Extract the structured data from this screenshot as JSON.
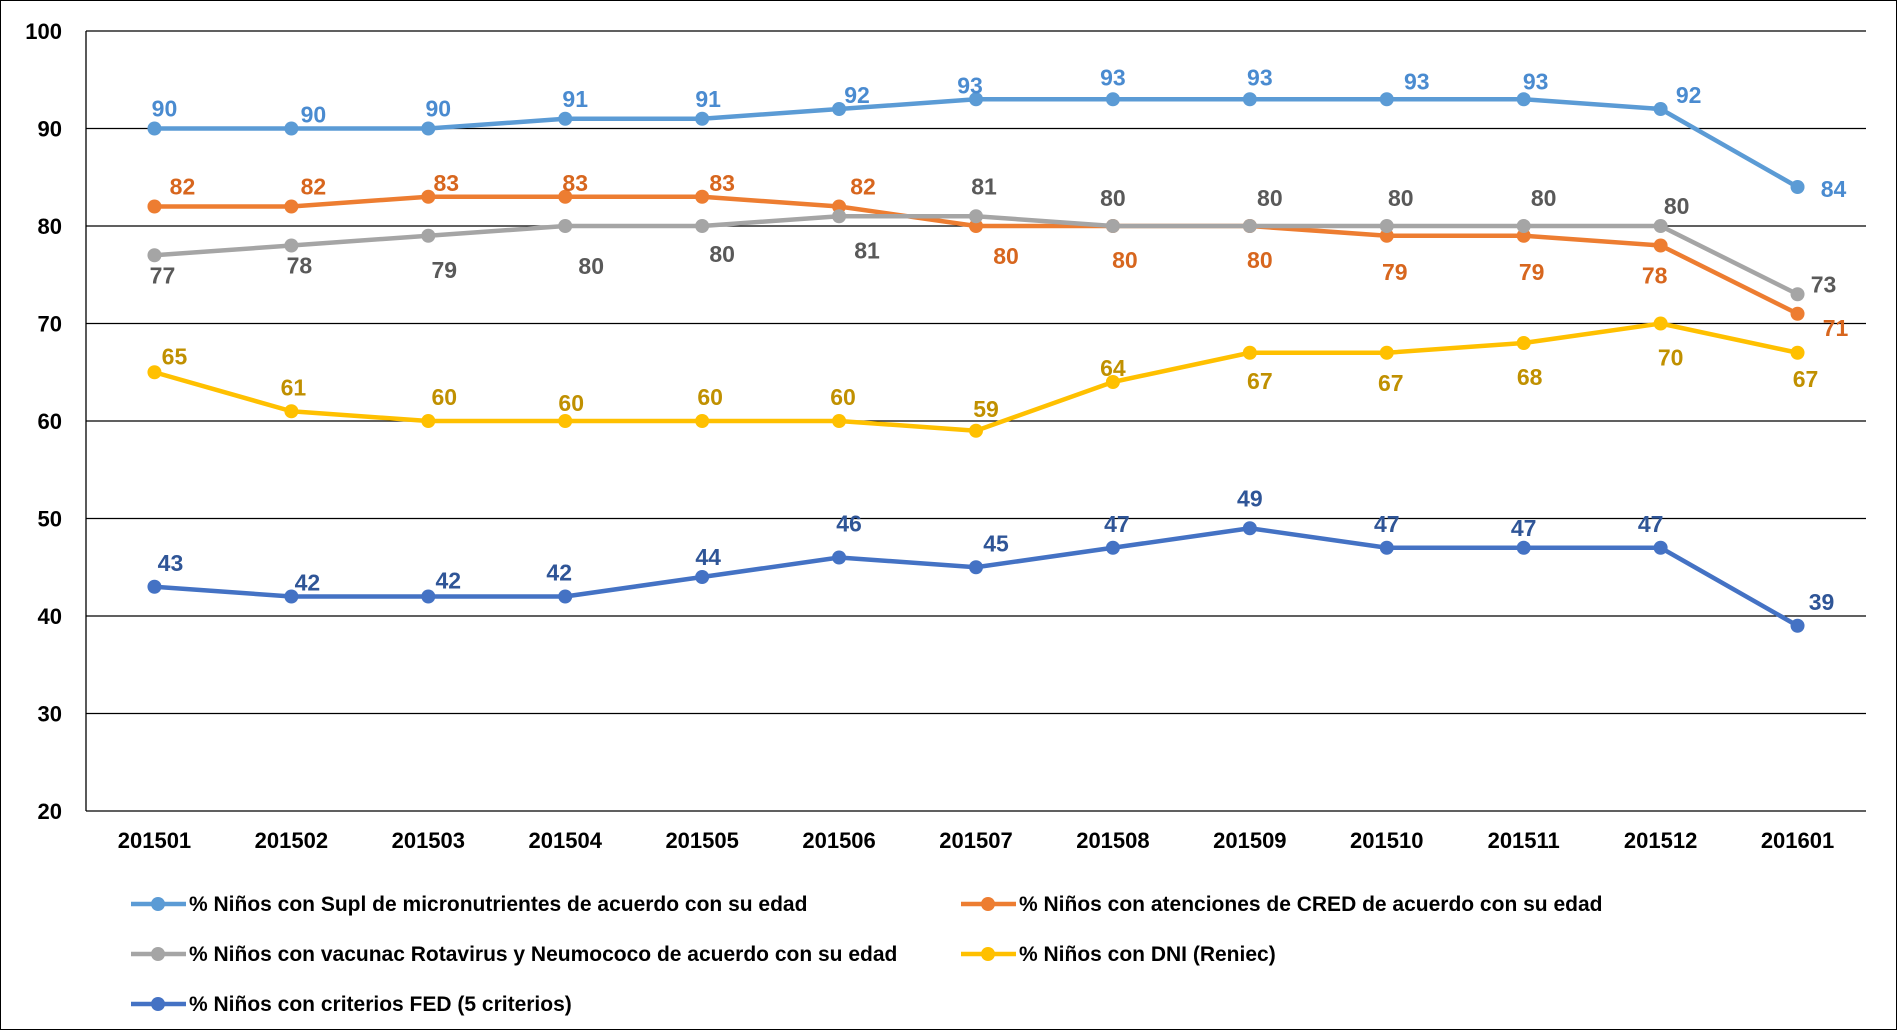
{
  "chart_data": {
    "type": "line",
    "title": "",
    "xlabel": "",
    "ylabel": "",
    "ylim": [
      20,
      100
    ],
    "yticks": [
      20,
      30,
      40,
      50,
      60,
      70,
      80,
      90,
      100
    ],
    "grid": "horizontal",
    "legend_position": "bottom",
    "categories": [
      "201501",
      "201502",
      "201503",
      "201504",
      "201505",
      "201506",
      "201507",
      "201508",
      "201509",
      "201510",
      "201511",
      "201512",
      "201601"
    ],
    "series": [
      {
        "name": "% Niños con Supl de micronutrientes de acuerdo con su edad",
        "color": "#5B9BD5",
        "label_color": "#4A8BD0",
        "values": [
          90,
          90,
          90,
          91,
          91,
          92,
          93,
          93,
          93,
          93,
          93,
          92,
          84
        ]
      },
      {
        "name": "% Niños  con atenciones de CRED de acuerdo con su edad",
        "color": "#ED7D31",
        "label_color": "#D7661E",
        "values": [
          82,
          82,
          83,
          83,
          83,
          82,
          80,
          80,
          80,
          79,
          79,
          78,
          71
        ]
      },
      {
        "name": "% Niños con vacunac Rotavirus y Neumococo de acuerdo con su edad",
        "color": "#A5A5A5",
        "label_color": "#595959",
        "values": [
          77,
          78,
          79,
          80,
          80,
          81,
          81,
          80,
          80,
          80,
          80,
          80,
          73
        ]
      },
      {
        "name": "% Niños con DNI (Reniec)",
        "color": "#FFC000",
        "label_color": "#C09000",
        "values": [
          65,
          61,
          60,
          60,
          60,
          60,
          59,
          64,
          67,
          67,
          68,
          70,
          67
        ]
      },
      {
        "name": "% Niños con criterios FED (5 criterios)",
        "color": "#4472C4",
        "label_color": "#2F5597",
        "values": [
          43,
          42,
          42,
          42,
          44,
          46,
          45,
          47,
          49,
          47,
          47,
          47,
          39
        ]
      }
    ]
  }
}
